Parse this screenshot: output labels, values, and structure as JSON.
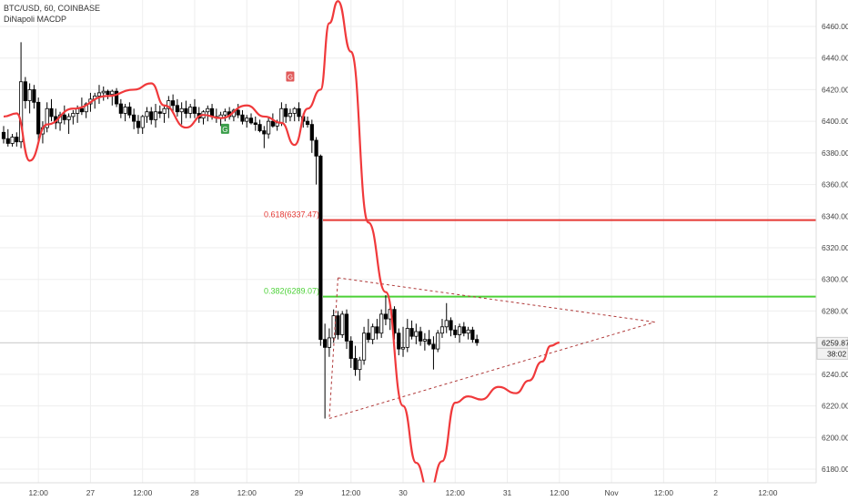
{
  "header": {
    "symbol_line": "BTC/USD, 60, COINBASE",
    "indicator": "DiNapoli MACDP"
  },
  "colors": {
    "up_candle": "#ffffff",
    "down_candle": "#000000",
    "indicator_line": "#f0393b",
    "fib_0618": "#e53935",
    "fib_0382": "#4cd137",
    "triangle": "#b03a3a",
    "grid": "#eeeeee",
    "price_line": "#cccccc"
  },
  "chart_data": {
    "type": "candlestick",
    "y_axis": {
      "min": 6170,
      "max": 6475,
      "ticks": [
        "6180.00",
        "6200.00",
        "6220.00",
        "6240.00",
        "6260.00",
        "6280.00",
        "6300.00",
        "6320.00",
        "6340.00",
        "6360.00",
        "6380.00",
        "6400.00",
        "6420.00",
        "6440.00",
        "6460.00"
      ],
      "current_price_label": "6259.87",
      "countdown_label": "38:02"
    },
    "x_axis": {
      "ticks": [
        {
          "label": "12:00",
          "bar": 8
        },
        {
          "label": "27",
          "bar": 20
        },
        {
          "label": "12:00",
          "bar": 32
        },
        {
          "label": "28",
          "bar": 44
        },
        {
          "label": "12:00",
          "bar": 56
        },
        {
          "label": "29",
          "bar": 68
        },
        {
          "label": "12:00",
          "bar": 80
        },
        {
          "label": "30",
          "bar": 92
        },
        {
          "label": "12:00",
          "bar": 104
        },
        {
          "label": "31",
          "bar": 116
        },
        {
          "label": "12:00",
          "bar": 128
        },
        {
          "label": "Nov",
          "bar": 140
        },
        {
          "label": "12:00",
          "bar": 152
        },
        {
          "label": "2",
          "bar": 164
        },
        {
          "label": "12:00",
          "bar": 176
        }
      ]
    },
    "candles": [
      [
        6393,
        6397,
        6386,
        6389
      ],
      [
        6389,
        6395,
        6384,
        6386
      ],
      [
        6386,
        6392,
        6384,
        6390
      ],
      [
        6390,
        6393,
        6384,
        6387
      ],
      [
        6387,
        6450,
        6383,
        6425
      ],
      [
        6425,
        6428,
        6408,
        6413
      ],
      [
        6413,
        6424,
        6405,
        6420
      ],
      [
        6420,
        6423,
        6408,
        6412
      ],
      [
        6412,
        6415,
        6387,
        6392
      ],
      [
        6392,
        6400,
        6386,
        6396
      ],
      [
        6396,
        6412,
        6393,
        6408
      ],
      [
        6408,
        6414,
        6400,
        6403
      ],
      [
        6403,
        6408,
        6395,
        6399
      ],
      [
        6399,
        6406,
        6394,
        6404
      ],
      [
        6404,
        6410,
        6398,
        6401
      ],
      [
        6401,
        6405,
        6392,
        6403
      ],
      [
        6403,
        6407,
        6398,
        6405
      ],
      [
        6405,
        6410,
        6399,
        6408
      ],
      [
        6408,
        6415,
        6404,
        6406
      ],
      [
        6406,
        6412,
        6402,
        6411
      ],
      [
        6411,
        6418,
        6406,
        6414
      ],
      [
        6414,
        6418,
        6408,
        6416
      ],
      [
        6416,
        6423,
        6411,
        6418
      ],
      [
        6418,
        6422,
        6413,
        6419
      ],
      [
        6419,
        6420,
        6414,
        6417
      ],
      [
        6417,
        6420,
        6410,
        6419
      ],
      [
        6419,
        6421,
        6409,
        6411
      ],
      [
        6411,
        6414,
        6402,
        6405
      ],
      [
        6405,
        6411,
        6400,
        6409
      ],
      [
        6409,
        6412,
        6402,
        6404
      ],
      [
        6404,
        6408,
        6395,
        6400
      ],
      [
        6400,
        6404,
        6392,
        6396
      ],
      [
        6396,
        6404,
        6392,
        6403
      ],
      [
        6403,
        6409,
        6399,
        6406
      ],
      [
        6406,
        6409,
        6398,
        6401
      ],
      [
        6401,
        6411,
        6396,
        6406
      ],
      [
        6406,
        6410,
        6402,
        6405
      ],
      [
        6405,
        6410,
        6399,
        6408
      ],
      [
        6408,
        6416,
        6402,
        6413
      ],
      [
        6413,
        6417,
        6406,
        6410
      ],
      [
        6410,
        6414,
        6403,
        6406
      ],
      [
        6406,
        6412,
        6398,
        6408
      ],
      [
        6408,
        6413,
        6402,
        6405
      ],
      [
        6405,
        6411,
        6402,
        6409
      ],
      [
        6409,
        6414,
        6402,
        6405
      ],
      [
        6405,
        6409,
        6399,
        6402
      ],
      [
        6402,
        6407,
        6398,
        6406
      ],
      [
        6406,
        6410,
        6400,
        6408
      ],
      [
        6408,
        6411,
        6401,
        6403
      ],
      [
        6403,
        6408,
        6399,
        6402
      ],
      [
        6402,
        6406,
        6397,
        6404
      ],
      [
        6404,
        6408,
        6400,
        6406
      ],
      [
        6406,
        6409,
        6401,
        6403
      ],
      [
        6403,
        6408,
        6400,
        6407
      ],
      [
        6407,
        6411,
        6402,
        6404
      ],
      [
        6404,
        6407,
        6398,
        6400
      ],
      [
        6400,
        6404,
        6396,
        6402
      ],
      [
        6402,
        6405,
        6398,
        6399
      ],
      [
        6399,
        6403,
        6394,
        6398
      ],
      [
        6398,
        6401,
        6393,
        6394
      ],
      [
        6394,
        6397,
        6383,
        6392
      ],
      [
        6392,
        6403,
        6389,
        6400
      ],
      [
        6400,
        6405,
        6396,
        6397
      ],
      [
        6397,
        6401,
        6394,
        6399
      ],
      [
        6399,
        6412,
        6397,
        6408
      ],
      [
        6408,
        6411,
        6399,
        6403
      ],
      [
        6403,
        6408,
        6400,
        6405
      ],
      [
        6405,
        6409,
        6400,
        6408
      ],
      [
        6408,
        6412,
        6400,
        6403
      ],
      [
        6403,
        6405,
        6396,
        6400
      ],
      [
        6400,
        6403,
        6396,
        6398
      ],
      [
        6398,
        6401,
        6380,
        6388
      ],
      [
        6388,
        6390,
        6360,
        6378
      ],
      [
        6378,
        6379,
        6258,
        6262
      ],
      [
        6262,
        6272,
        6212,
        6257
      ],
      [
        6257,
        6269,
        6251,
        6263
      ],
      [
        6263,
        6281,
        6260,
        6277
      ],
      [
        6277,
        6280,
        6262,
        6265
      ],
      [
        6265,
        6280,
        6263,
        6278
      ],
      [
        6278,
        6281,
        6256,
        6261
      ],
      [
        6261,
        6264,
        6244,
        6250
      ],
      [
        6250,
        6258,
        6239,
        6243
      ],
      [
        6243,
        6251,
        6236,
        6249
      ],
      [
        6249,
        6270,
        6246,
        6266
      ],
      [
        6266,
        6275,
        6260,
        6262
      ],
      [
        6262,
        6272,
        6259,
        6270
      ],
      [
        6270,
        6275,
        6262,
        6266
      ],
      [
        6266,
        6281,
        6263,
        6278
      ],
      [
        6278,
        6290,
        6271,
        6275
      ],
      [
        6275,
        6286,
        6268,
        6281
      ],
      [
        6281,
        6283,
        6262,
        6266
      ],
      [
        6266,
        6269,
        6252,
        6256
      ],
      [
        6256,
        6270,
        6251,
        6257
      ],
      [
        6257,
        6275,
        6254,
        6269
      ],
      [
        6269,
        6274,
        6262,
        6264
      ],
      [
        6264,
        6272,
        6259,
        6267
      ],
      [
        6267,
        6270,
        6258,
        6261
      ],
      [
        6261,
        6266,
        6255,
        6262
      ],
      [
        6262,
        6268,
        6258,
        6259
      ],
      [
        6259,
        6264,
        6243,
        6256
      ],
      [
        6256,
        6268,
        6254,
        6266
      ],
      [
        6266,
        6275,
        6263,
        6270
      ],
      [
        6270,
        6285,
        6266,
        6274
      ],
      [
        6274,
        6276,
        6264,
        6268
      ],
      [
        6268,
        6271,
        6263,
        6265
      ],
      [
        6265,
        6272,
        6260,
        6270
      ],
      [
        6270,
        6273,
        6264,
        6266
      ],
      [
        6266,
        6270,
        6262,
        6268
      ],
      [
        6268,
        6270,
        6260,
        6262
      ],
      [
        6262,
        6265,
        6258,
        6260
      ]
    ],
    "indicator_line": [
      [
        0,
        6403
      ],
      [
        3,
        6405
      ],
      [
        6,
        6375
      ],
      [
        10,
        6398
      ],
      [
        16,
        6408
      ],
      [
        24,
        6416
      ],
      [
        30,
        6420
      ],
      [
        34,
        6424
      ],
      [
        37,
        6410
      ],
      [
        42,
        6396
      ],
      [
        46,
        6404
      ],
      [
        50,
        6402
      ],
      [
        56,
        6410
      ],
      [
        60,
        6403
      ],
      [
        64,
        6399
      ],
      [
        67,
        6385
      ],
      [
        70,
        6408
      ],
      [
        73,
        6420
      ],
      [
        75,
        6462
      ],
      [
        77,
        6476
      ],
      [
        80,
        6444
      ],
      [
        84,
        6336
      ],
      [
        88,
        6292
      ],
      [
        92,
        6220
      ],
      [
        95,
        6184
      ],
      [
        98,
        6165
      ],
      [
        101,
        6185
      ],
      [
        104,
        6222
      ],
      [
        107,
        6226
      ],
      [
        110,
        6224
      ],
      [
        114,
        6232
      ],
      [
        118,
        6228
      ],
      [
        121,
        6236
      ],
      [
        124,
        6248
      ],
      [
        126,
        6258
      ],
      [
        128,
        6260
      ]
    ],
    "fib_levels": [
      {
        "label": "0.618(6337.47)",
        "value": 6337.47
      },
      {
        "label": "0.382(6289.07)",
        "value": 6289.07
      }
    ],
    "triangle": {
      "apex": [
        150,
        6273
      ],
      "upper_start": [
        77,
        6301
      ],
      "lower_start": [
        75,
        6212
      ]
    },
    "signals": [
      {
        "label": "G",
        "bar": 66,
        "value": 6428,
        "color": "#e05a5a"
      },
      {
        "label": "G",
        "bar": 51,
        "value": 6395,
        "color": "#3a9e4a"
      }
    ]
  }
}
